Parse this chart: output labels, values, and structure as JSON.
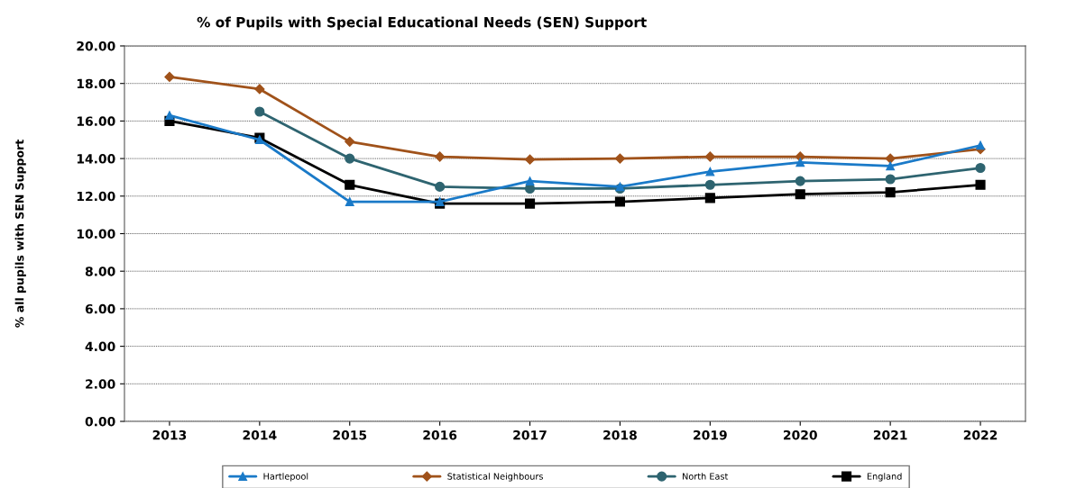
{
  "chart_data": {
    "type": "line",
    "title": "% of Pupils with Special Educational Needs (SEN) Support",
    "ylabel": "% all pupils with SEN Support",
    "categories": [
      "2013",
      "2014",
      "2015",
      "2016",
      "2017",
      "2018",
      "2019",
      "2020",
      "2021",
      "2022"
    ],
    "series": [
      {
        "name": "Hartlepool",
        "color": "#1a7ac8",
        "marker": "triangle",
        "values": [
          16.3,
          15.0,
          11.7,
          11.7,
          12.8,
          12.5,
          13.3,
          13.8,
          13.6,
          14.7
        ]
      },
      {
        "name": "Statistical Neighbours",
        "color": "#a0521a",
        "marker": "diamond",
        "values": [
          18.35,
          17.7,
          14.9,
          14.1,
          13.95,
          14.0,
          14.1,
          14.1,
          14.0,
          14.5
        ]
      },
      {
        "name": "North East",
        "color": "#2e6470",
        "marker": "circle",
        "values": [
          null,
          16.5,
          14.0,
          12.5,
          12.4,
          12.4,
          12.6,
          12.8,
          12.9,
          13.5
        ]
      },
      {
        "name": "England",
        "color": "#000000",
        "marker": "square",
        "values": [
          16.0,
          15.1,
          12.6,
          11.6,
          11.6,
          11.7,
          11.9,
          12.1,
          12.2,
          12.6
        ]
      }
    ],
    "ylim": [
      0,
      20
    ],
    "yticks": [
      {
        "value": 0,
        "label": "0.00"
      },
      {
        "value": 2,
        "label": "2.00"
      },
      {
        "value": 4,
        "label": "4.00"
      },
      {
        "value": 6,
        "label": "6.00"
      },
      {
        "value": 8,
        "label": "8.00"
      },
      {
        "value": 10,
        "label": "10.00"
      },
      {
        "value": 12,
        "label": "12.00"
      },
      {
        "value": 14,
        "label": "14.00"
      },
      {
        "value": 16,
        "label": "16.00"
      },
      {
        "value": 18,
        "label": "18.00"
      },
      {
        "value": 20,
        "label": "20.00"
      }
    ],
    "grid": "y",
    "legend": "bottom",
    "line_style": "solid"
  }
}
